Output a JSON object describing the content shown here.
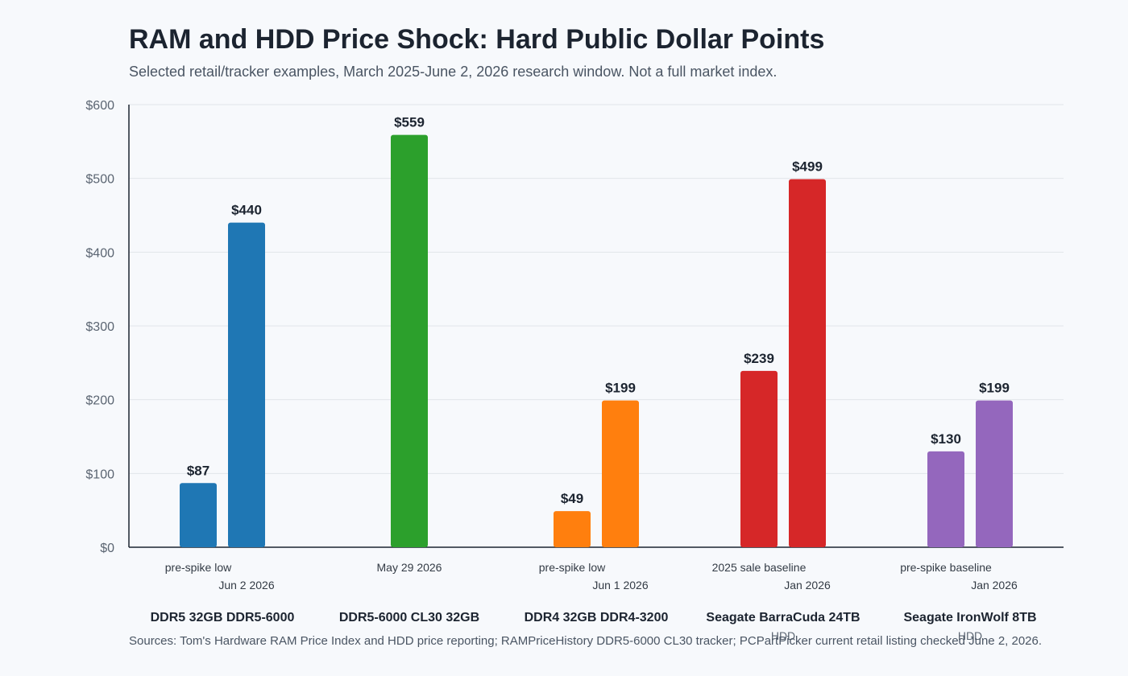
{
  "chart_data": {
    "type": "bar",
    "title": "RAM and HDD Price Shock: Hard Public Dollar Points",
    "subtitle": "Selected retail/tracker examples, March 2025-June 2, 2026 research window. Not a full market index.",
    "ylim": [
      0,
      600
    ],
    "yticks": [
      0,
      100,
      200,
      300,
      400,
      500,
      600
    ],
    "ytick_labels": [
      "$0",
      "$100",
      "$200",
      "$300",
      "$400",
      "$500",
      "$600"
    ],
    "grid": true,
    "groups": [
      {
        "name": "DDR5 32GB DDR5-6000",
        "sub": "",
        "color": "#1f77b4",
        "bars": [
          {
            "label": "pre-spike low",
            "value": 87,
            "value_label": "$87"
          },
          {
            "label": "Jun 2 2026",
            "value": 440,
            "value_label": "$440"
          }
        ]
      },
      {
        "name": "DDR5-6000 CL30 32GB",
        "sub": "",
        "color": "#2ca02c",
        "bars": [
          {
            "label": "May 29 2026",
            "value": 559,
            "value_label": "$559"
          }
        ]
      },
      {
        "name": "DDR4 32GB DDR4-3200",
        "sub": "",
        "color": "#ff7f0e",
        "bars": [
          {
            "label": "pre-spike low",
            "value": 49,
            "value_label": "$49"
          },
          {
            "label": "Jun 1 2026",
            "value": 199,
            "value_label": "$199"
          }
        ]
      },
      {
        "name": "Seagate BarraCuda 24TB",
        "sub": "HDD",
        "color": "#d62728",
        "bars": [
          {
            "label": "2025 sale baseline",
            "value": 239,
            "value_label": "$239"
          },
          {
            "label": "Jan 2026",
            "value": 499,
            "value_label": "$499"
          }
        ]
      },
      {
        "name": "Seagate IronWolf 8TB",
        "sub": "HDD",
        "color": "#9467bd",
        "bars": [
          {
            "label": "pre-spike baseline",
            "value": 130,
            "value_label": "$130"
          },
          {
            "label": "Jan 2026",
            "value": 199,
            "value_label": "$199"
          }
        ]
      }
    ],
    "sources": "Sources: Tom's Hardware RAM Price Index and HDD price reporting; RAMPriceHistory DDR5-6000 CL30 tracker; PCPartPicker current retail listing checked June 2, 2026."
  }
}
